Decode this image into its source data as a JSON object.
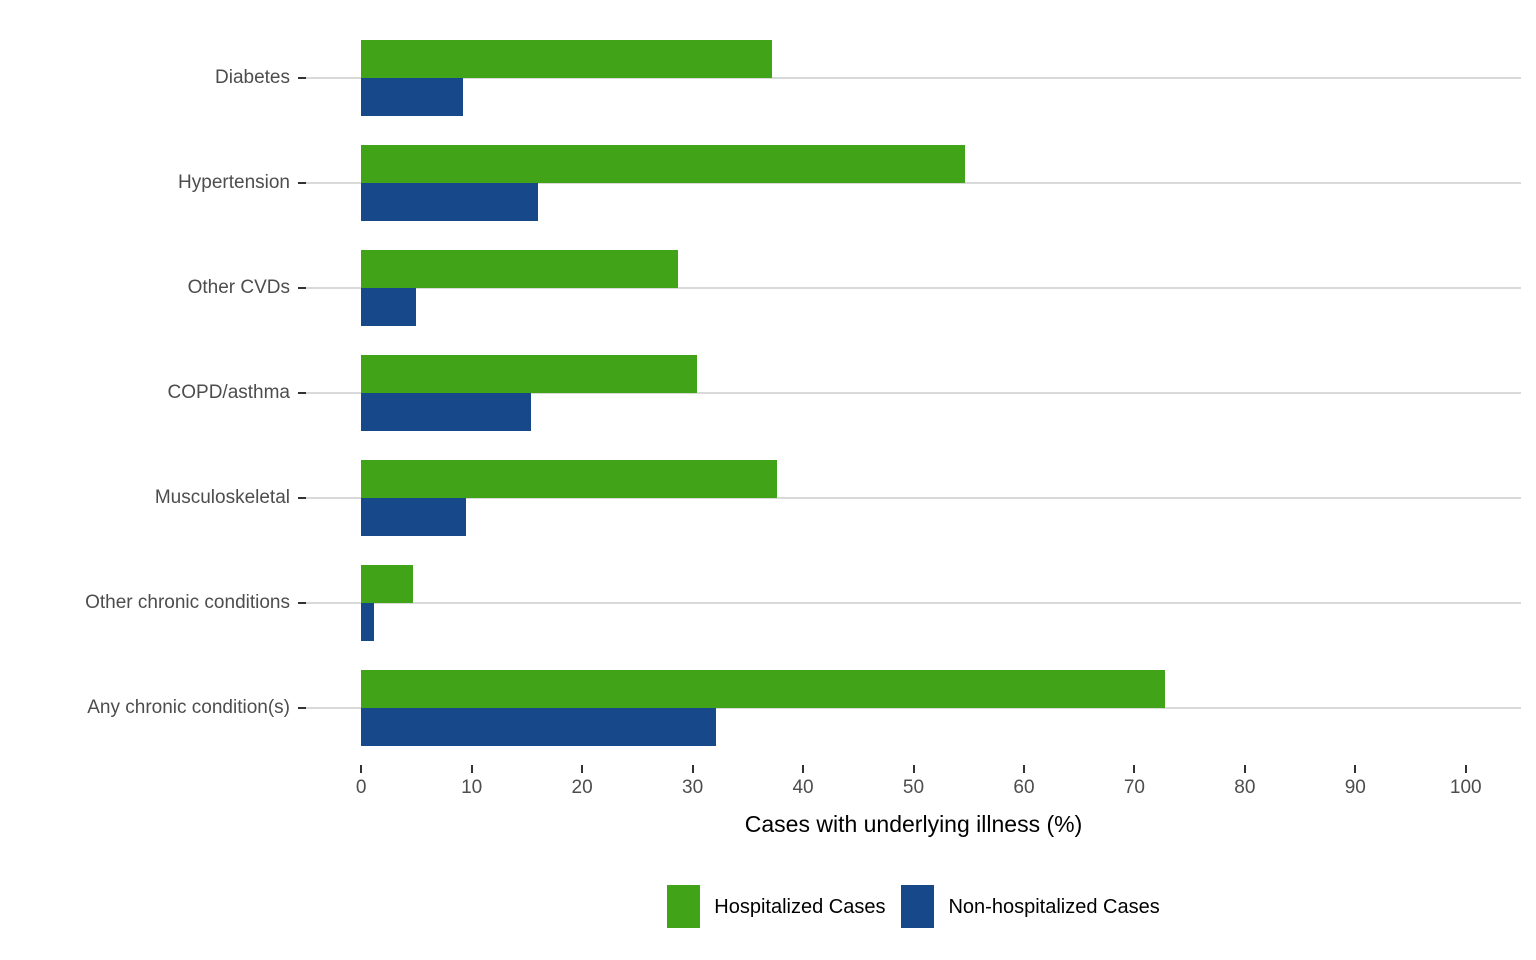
{
  "chart_data": {
    "type": "bar",
    "orientation": "horizontal",
    "title": "",
    "categories": [
      "Diabetes",
      "Hypertension",
      "Other CVDs",
      "COPD/asthma",
      "Musculoskeletal",
      "Other chronic conditions",
      "Any chronic condition(s)"
    ],
    "series": [
      {
        "name": "Hospitalized Cases",
        "color": "#41a317",
        "values": [
          37.2,
          54.7,
          28.7,
          30.4,
          37.6,
          4.7,
          72.8
        ]
      },
      {
        "name": "Non-hospitalized Cases",
        "color": "#17498a",
        "values": [
          9.2,
          16.0,
          5.0,
          15.4,
          9.5,
          1.2,
          32.1
        ]
      }
    ],
    "xlabel": "Cases with underlying illness (%)",
    "xlim": [
      0,
      100
    ],
    "xticks": [
      0,
      10,
      20,
      30,
      40,
      50,
      60,
      70,
      80,
      90,
      100
    ],
    "grid": "horizontal category gridlines only",
    "legend_position": "bottom",
    "colors": {
      "grid": "#d9d9d9",
      "tick": "#333333",
      "axis_text": "#4d4d4d",
      "axis_title": "#000000",
      "background": "#ffffff"
    }
  }
}
